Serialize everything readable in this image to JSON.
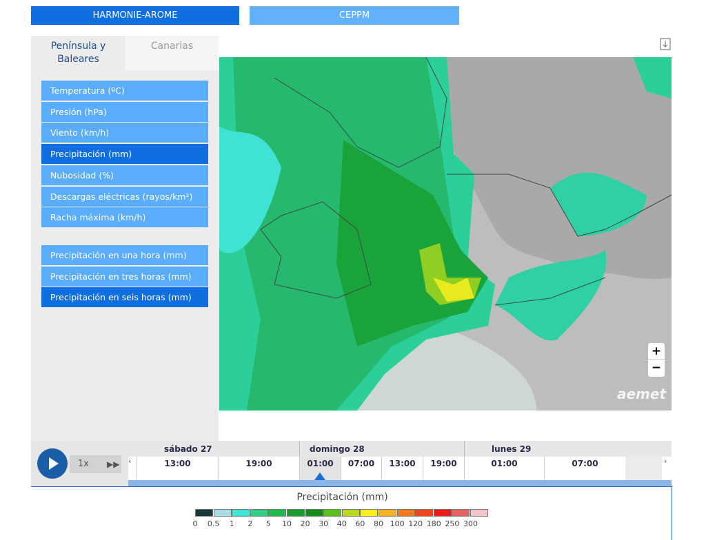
{
  "header": {
    "models": [
      {
        "label": "HARMONIE-AROME",
        "selected": true
      },
      {
        "label": "CEPPM",
        "selected": false
      }
    ]
  },
  "tabs": [
    {
      "label": "Península y Baleares",
      "selected": true
    },
    {
      "label": "Canarias",
      "selected": false
    }
  ],
  "menu": {
    "groups": [
      [
        {
          "label": "Temperatura (ºC)",
          "selected": false
        },
        {
          "label": "Presión (hPa)",
          "selected": false
        },
        {
          "label": "Viento (km/h)",
          "selected": false
        },
        {
          "label": "Precipitación (mm)",
          "selected": true
        },
        {
          "label": "Nubosidad (%)",
          "selected": false
        },
        {
          "label": "Descargas eléctricas (rayos/km²)",
          "selected": false
        },
        {
          "label": "Racha máxima (km/h)",
          "selected": false
        }
      ],
      [
        {
          "label": "Precipitación en una hora (mm)",
          "selected": false
        },
        {
          "label": "Precipitación en tres horas (mm)",
          "selected": false
        },
        {
          "label": "Precipitación en seis horas (mm)",
          "selected": true
        }
      ]
    ]
  },
  "map": {
    "zoom_in": "+",
    "zoom_out": "−",
    "logo": "aemet"
  },
  "timeline": {
    "speed": "1x",
    "days": [
      {
        "label": "sábado 27",
        "times": [
          "13:00",
          "19:00"
        ]
      },
      {
        "label": "domingo 28",
        "times": [
          "01:00",
          "07:00",
          "13:00",
          "19:00"
        ]
      },
      {
        "label": "lunes 29",
        "times": [
          "01:00",
          "07:00"
        ]
      }
    ]
  },
  "legend": {
    "title": "Precipitación (mm)",
    "items": [
      {
        "label": 0,
        "color": "#17383a"
      },
      {
        "label": 0.5,
        "color": "#a8dde6"
      },
      {
        "label": 1,
        "color": "#3de6d2"
      },
      {
        "label": 2,
        "color": "#2fcf86"
      },
      {
        "label": 5,
        "color": "#21ba4f"
      },
      {
        "label": 10,
        "color": "#189c2c"
      },
      {
        "label": 20,
        "color": "#128a18"
      },
      {
        "label": 30,
        "color": "#5ac21c"
      },
      {
        "label": 40,
        "color": "#b7da1c"
      },
      {
        "label": 60,
        "color": "#f6f01c"
      },
      {
        "label": 80,
        "color": "#f5b41c"
      },
      {
        "label": 100,
        "color": "#f47a1c"
      },
      {
        "label": 120,
        "color": "#ef441c"
      },
      {
        "label": 180,
        "color": "#ee1a1a"
      },
      {
        "label": 250,
        "color": "#e66262"
      },
      {
        "label": 300,
        "color": "#f2c6c6"
      }
    ]
  }
}
